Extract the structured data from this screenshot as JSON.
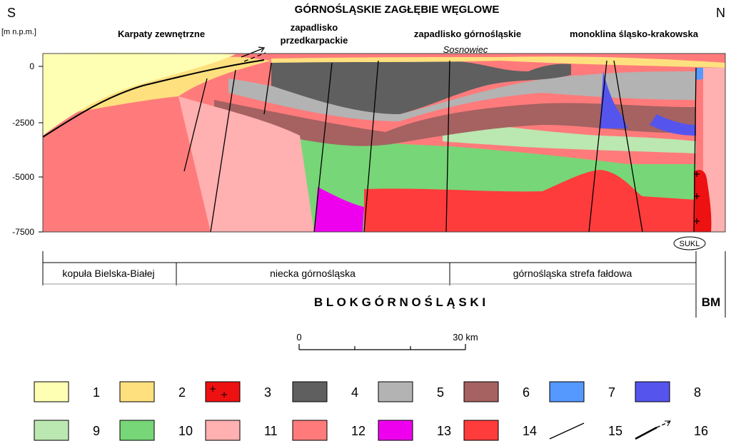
{
  "title": "GÓRNOŚLĄSKIE  ZAGŁĘBIE  WĘGLOWE",
  "directions": {
    "left": "S",
    "right": "N"
  },
  "y_axis": {
    "unit": "[m n.p.m.]",
    "ticks": [
      "0",
      "-2500",
      "-5000",
      "-7500"
    ]
  },
  "region_labels": {
    "karpaty": "Karpaty zewnętrzne",
    "zapadlisko_przedkarpackie_1": "zapadlisko",
    "zapadlisko_przedkarpackie_2": "przedkarpackie",
    "zapadlisko_gornoslaskie": "zapadlisko górnośląskie",
    "sosnowiec": "Sosnowiec",
    "monoklina": "monoklina śląsko-krakowska"
  },
  "sukl": "SUKL",
  "units": {
    "kopula": "kopuła Bielska-Białej",
    "niecka": "niecka  górnośląska",
    "strefa": "górnośląska strefa fałdowa"
  },
  "block": "B L O K      G Ó R N O Ś L Ą S K I",
  "bm": "BM",
  "scale": {
    "start": "0",
    "end": "30 km"
  },
  "legend": [
    {
      "num": "1",
      "color": "#ffffb3"
    },
    {
      "num": "2",
      "color": "#ffe07f"
    },
    {
      "num": "3",
      "color": "#ee1111"
    },
    {
      "num": "4",
      "color": "#5f5f5f"
    },
    {
      "num": "5",
      "color": "#b3b3b3"
    },
    {
      "num": "6",
      "color": "#a66161"
    },
    {
      "num": "7",
      "color": "#5599ff"
    },
    {
      "num": "8",
      "color": "#5555ee"
    },
    {
      "num": "9",
      "color": "#bbe7b0"
    },
    {
      "num": "10",
      "color": "#77d677"
    },
    {
      "num": "11",
      "color": "#ffb0b0"
    },
    {
      "num": "12",
      "color": "#ff7b7b"
    },
    {
      "num": "13",
      "color": "#ee00ee"
    },
    {
      "num": "14",
      "color": "#ff3c3c"
    },
    {
      "num": "15",
      "color": ""
    },
    {
      "num": "16",
      "color": ""
    }
  ]
}
